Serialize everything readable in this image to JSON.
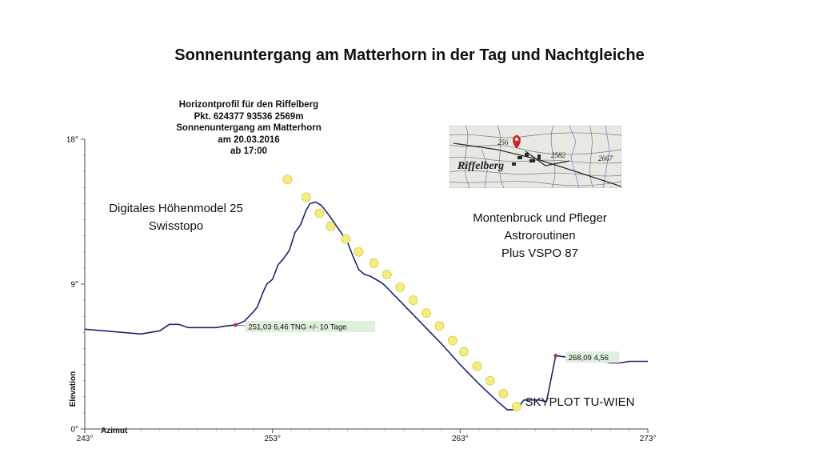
{
  "title": "Sonnenuntergang am Matterhorn in der Tag und Nachtgleiche",
  "header_lines": [
    "Horizontprofil für den Riffelberg",
    "Pkt.  624377 93536 2569m",
    "Sonnenuntergang am Matterhorn",
    "am 20.03.2016",
    "ab 17:00"
  ],
  "notes": {
    "dhm": [
      "Digitales Höhenmodel 25",
      "Swisstopo"
    ],
    "montenbruck": [
      "Montenbruck und Pfleger",
      "Astroroutinen",
      "Plus VSPO 87"
    ],
    "skyplot": "SKYPLOT TU-WIEN"
  },
  "map_inset": {
    "labels": [
      "256",
      "2582",
      "2667",
      "Riffelberg"
    ],
    "pin_color": "#e02020"
  },
  "chart_data": {
    "type": "line",
    "xlabel": "Azimut",
    "ylabel": "Elevation",
    "xlim": [
      243,
      273
    ],
    "ylim": [
      0,
      18
    ],
    "x_ticks": [
      243,
      253,
      263,
      273
    ],
    "x_tick_labels": [
      "243°",
      "253°",
      "263°",
      "273°"
    ],
    "y_ticks": [
      0,
      9,
      18
    ],
    "y_tick_labels": [
      "0°",
      "9°",
      "18°"
    ],
    "grid": false,
    "colors": {
      "horizon": "#1c2470",
      "sun": "#f6ee7a",
      "sun_stroke": "#c9bd2a",
      "annotation_bg": "#dfeedd",
      "marker": "#c0304a"
    },
    "horizon_profile": {
      "x": [
        243.0,
        244.0,
        245.0,
        246.0,
        247.0,
        247.5,
        248.0,
        248.5,
        249.0,
        249.5,
        250.0,
        250.5,
        251.03,
        251.5,
        252.0,
        252.2,
        252.5,
        252.7,
        253.0,
        253.3,
        253.6,
        253.9,
        254.2,
        254.5,
        254.8,
        255.0,
        255.3,
        255.6,
        256.0,
        256.3,
        256.6,
        257.0,
        257.3,
        257.6,
        257.9,
        258.2,
        258.5,
        258.8,
        259.0,
        259.5,
        260.0,
        261.0,
        262.0,
        263.0,
        264.0,
        265.0,
        265.5,
        266.0,
        266.4,
        266.8,
        267.2,
        267.6,
        268.09,
        269.0,
        270.0,
        271.0,
        271.5,
        272.0,
        273.0
      ],
      "y": [
        6.2,
        6.1,
        6.0,
        5.9,
        6.1,
        6.5,
        6.5,
        6.3,
        6.3,
        6.3,
        6.3,
        6.4,
        6.46,
        6.7,
        7.3,
        7.6,
        8.5,
        9.0,
        9.3,
        10.2,
        10.6,
        11.1,
        12.2,
        12.7,
        13.6,
        14.0,
        14.1,
        13.9,
        13.3,
        12.8,
        12.3,
        11.6,
        10.7,
        9.9,
        9.6,
        9.5,
        9.3,
        9.1,
        8.9,
        8.3,
        7.7,
        6.5,
        5.3,
        4.0,
        2.8,
        1.7,
        1.2,
        1.2,
        1.8,
        1.8,
        1.8,
        1.7,
        4.56,
        4.4,
        4.3,
        4.1,
        4.1,
        4.2,
        4.2
      ]
    },
    "sun_positions": {
      "x": [
        253.8,
        254.8,
        255.5,
        256.1,
        256.9,
        257.6,
        258.4,
        259.1,
        259.8,
        260.5,
        261.2,
        261.9,
        262.6,
        263.2,
        263.9,
        264.6,
        265.3,
        266.0
      ],
      "y": [
        15.5,
        14.4,
        13.4,
        12.6,
        11.8,
        11.0,
        10.3,
        9.6,
        8.8,
        8.0,
        7.2,
        6.4,
        5.5,
        4.8,
        3.9,
        3.0,
        2.2,
        1.4
      ]
    },
    "annotations": [
      {
        "x": 251.03,
        "y": 6.46,
        "label": "251,03 6,46  TNG +/- 10 Tage"
      },
      {
        "x": 268.09,
        "y": 4.56,
        "label": "268,09 4,56"
      }
    ]
  }
}
